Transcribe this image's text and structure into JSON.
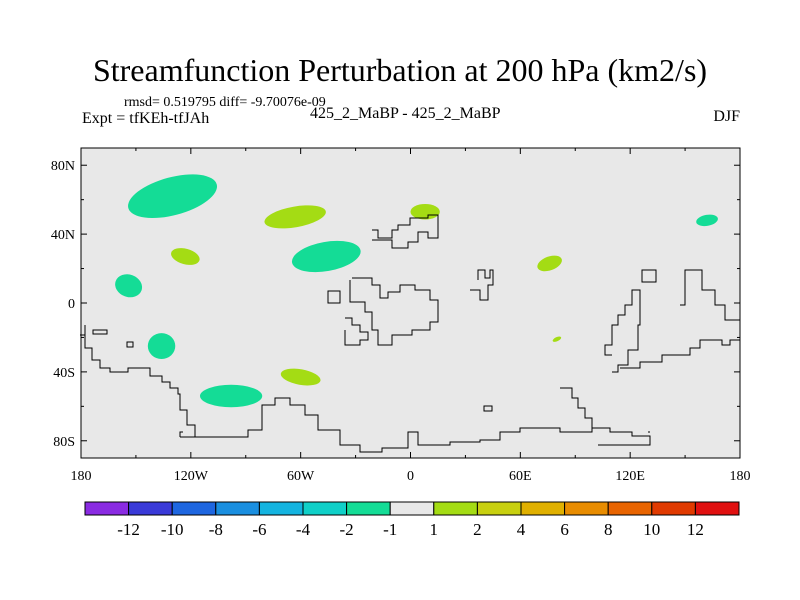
{
  "header": {
    "title": "Streamfunction Perturbation at 200 hPa (km2/s)",
    "stats": "rmsd= 0.519795 diff= -9.70076e-09",
    "experiment": "Expt = tfKEh-tfJAh",
    "case": "425_2_MaBP - 425_2_MaBP",
    "season": "DJF"
  },
  "chart_data": {
    "type": "heatmap",
    "projection": "cylindrical equidistant map",
    "xlim": [
      -180,
      180
    ],
    "ylim": [
      -90,
      90
    ],
    "xticks": [
      {
        "value": -180,
        "label": "180"
      },
      {
        "value": -120,
        "label": "120W"
      },
      {
        "value": -60,
        "label": "60W"
      },
      {
        "value": 0,
        "label": "0"
      },
      {
        "value": 60,
        "label": "60E"
      },
      {
        "value": 120,
        "label": "120E"
      },
      {
        "value": 180,
        "label": "180"
      }
    ],
    "yticks": [
      {
        "value": 80,
        "label": "80N"
      },
      {
        "value": 40,
        "label": "40N"
      },
      {
        "value": 0,
        "label": "0"
      },
      {
        "value": -40,
        "label": "40S"
      },
      {
        "value": -80,
        "label": "80S"
      }
    ],
    "background_color": "#e8e8e8",
    "colorbar": {
      "labels": [
        "-12",
        "-10",
        "-8",
        "-6",
        "-4",
        "-2",
        "-1",
        "1",
        "2",
        "4",
        "6",
        "8",
        "10",
        "12"
      ],
      "colors": [
        "#8a2be2",
        "#3a3ad8",
        "#1e66e0",
        "#1a8fe0",
        "#14b4e0",
        "#10d0c8",
        "#14dc96",
        "#e8e8e8",
        "#a4dc14",
        "#c8d010",
        "#e0b000",
        "#e88c00",
        "#e86400",
        "#e03a00",
        "#e01010"
      ]
    },
    "anomalies": [
      {
        "lon": -130,
        "lat": 62,
        "lon_radius": 25,
        "lat_radius": 11,
        "rotation": -15,
        "color": "#14dc96",
        "range": "-2 to -1"
      },
      {
        "lon": -63,
        "lat": 50,
        "lon_radius": 17,
        "lat_radius": 6,
        "rotation": -10,
        "color": "#a4dc14",
        "range": "1 to 2"
      },
      {
        "lon": 8,
        "lat": 53,
        "lon_radius": 8,
        "lat_radius": 4.5,
        "rotation": 0,
        "color": "#a4dc14",
        "range": "1 to 2"
      },
      {
        "lon": -123,
        "lat": 27,
        "lon_radius": 8,
        "lat_radius": 4.5,
        "rotation": 15,
        "color": "#a4dc14",
        "range": "1 to 2"
      },
      {
        "lon": -46,
        "lat": 27,
        "lon_radius": 19,
        "lat_radius": 8.5,
        "rotation": -10,
        "color": "#14dc96",
        "range": "-2 to -1"
      },
      {
        "lon": 76,
        "lat": 23,
        "lon_radius": 7,
        "lat_radius": 4,
        "rotation": -20,
        "color": "#a4dc14",
        "range": "1 to 2"
      },
      {
        "lon": 162,
        "lat": 48,
        "lon_radius": 6,
        "lat_radius": 3.2,
        "rotation": -10,
        "color": "#14dc96",
        "range": "-2 to -1"
      },
      {
        "lon": -154,
        "lat": 10,
        "lon_radius": 7.5,
        "lat_radius": 6.5,
        "rotation": 20,
        "color": "#14dc96",
        "range": "-2 to -1"
      },
      {
        "lon": -136,
        "lat": -25,
        "lon_radius": 7.5,
        "lat_radius": 7.5,
        "rotation": 0,
        "color": "#14dc96",
        "range": "-2 to -1"
      },
      {
        "lon": -60,
        "lat": -43,
        "lon_radius": 11,
        "lat_radius": 4.5,
        "rotation": 10,
        "color": "#a4dc14",
        "range": "1 to 2"
      },
      {
        "lon": -98,
        "lat": -54,
        "lon_radius": 17,
        "lat_radius": 6.5,
        "rotation": 0,
        "color": "#14dc96",
        "range": "-2 to -1"
      },
      {
        "lon": 80,
        "lat": -21,
        "lon_radius": 2.5,
        "lat_radius": 1.2,
        "rotation": -25,
        "color": "#a4dc14",
        "range": "1 to 2"
      }
    ]
  }
}
